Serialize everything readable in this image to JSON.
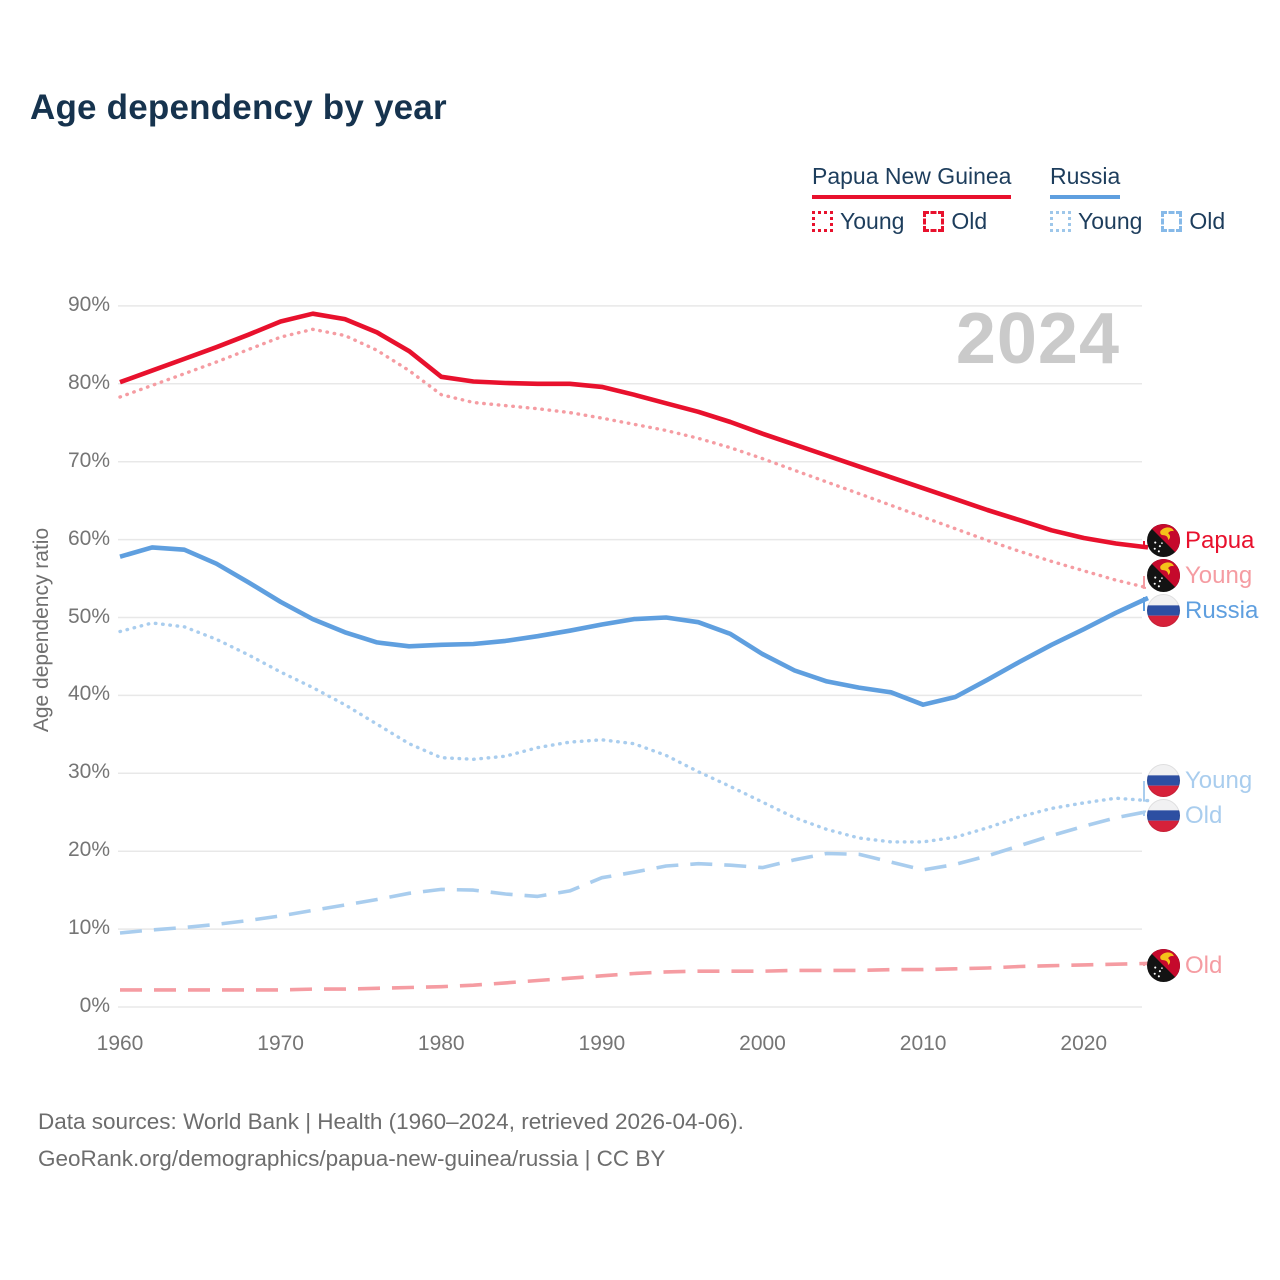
{
  "title": "Age dependency by year",
  "watermark": "2024",
  "legend": {
    "groups": [
      {
        "label": "Papua New Guinea",
        "color": "#e8112d",
        "items": [
          {
            "label": "Young",
            "style": "dotted",
            "color": "#e8112d"
          },
          {
            "label": "Old",
            "style": "dashed",
            "color": "#e8112d"
          }
        ]
      },
      {
        "label": "Russia",
        "color": "#5f9fdf",
        "items": [
          {
            "label": "Young",
            "style": "dotted",
            "color": "#9ec7ea"
          },
          {
            "label": "Old",
            "style": "dashed",
            "color": "#86b9e8"
          }
        ]
      }
    ]
  },
  "y_axis": {
    "title": "Age dependency ratio",
    "tick_values": [
      0,
      10,
      20,
      30,
      40,
      50,
      60,
      70,
      80,
      90
    ],
    "tick_suffix": "%"
  },
  "x_axis": {
    "tick_values": [
      1960,
      1970,
      1980,
      1990,
      2000,
      2010,
      2020
    ]
  },
  "footer": {
    "line1": "Data sources: World Bank | Health (1960–2024, retrieved 2026-04-06).",
    "line2": "GeoRank.org/demographics/papua-new-guinea/russia | CC BY"
  },
  "chart_data": {
    "type": "line",
    "title": "Age dependency by year",
    "ylabel": "Age dependency ratio",
    "xlim": [
      1960,
      2024
    ],
    "ylim": [
      0,
      95
    ],
    "grid": "horizontal",
    "legend_position": "top-right",
    "x": [
      1960,
      1962,
      1964,
      1966,
      1968,
      1970,
      1972,
      1974,
      1976,
      1978,
      1980,
      1982,
      1984,
      1986,
      1988,
      1990,
      1992,
      1994,
      1996,
      1998,
      2000,
      2002,
      2004,
      2006,
      2008,
      2010,
      2012,
      2014,
      2016,
      2018,
      2020,
      2022,
      2024
    ],
    "series": [
      {
        "id": "png-total",
        "name": "Papua New Guinea — total dependency",
        "end_label": "Papua",
        "flag": "papua-new-guinea",
        "color": "#e8112d",
        "style": "solid",
        "values": [
          80.2,
          81.7,
          83.2,
          84.7,
          86.3,
          88.0,
          89.0,
          88.3,
          86.6,
          84.2,
          80.9,
          80.3,
          80.1,
          80.0,
          80.0,
          79.6,
          78.6,
          77.5,
          76.4,
          75.1,
          73.6,
          72.2,
          70.8,
          69.4,
          68.0,
          66.6,
          65.2,
          63.8,
          62.5,
          61.2,
          60.2,
          59.5,
          59.0
        ]
      },
      {
        "id": "png-young",
        "name": "Papua New Guinea — young dependency",
        "end_label": "Young",
        "flag": "papua-new-guinea",
        "color": "#f59ca2",
        "style": "dotted",
        "values": [
          78.3,
          79.8,
          81.3,
          82.8,
          84.4,
          86.0,
          87.0,
          86.2,
          84.3,
          81.7,
          78.6,
          77.6,
          77.2,
          76.8,
          76.3,
          75.6,
          74.8,
          74.0,
          73.0,
          71.8,
          70.4,
          68.9,
          67.4,
          65.9,
          64.4,
          62.9,
          61.4,
          59.9,
          58.5,
          57.2,
          56.0,
          54.8,
          53.8
        ]
      },
      {
        "id": "ru-total",
        "name": "Russia — total dependency",
        "end_label": "Russia",
        "flag": "russia",
        "color": "#5f9fdf",
        "style": "solid",
        "values": [
          57.8,
          59.0,
          58.7,
          56.9,
          54.5,
          52.0,
          49.8,
          48.1,
          46.8,
          46.3,
          46.5,
          46.6,
          47.0,
          47.6,
          48.3,
          49.1,
          49.8,
          50.0,
          49.4,
          47.9,
          45.3,
          43.2,
          41.8,
          41.0,
          40.4,
          38.8,
          39.8,
          42.0,
          44.3,
          46.5,
          48.5,
          50.6,
          52.5
        ]
      },
      {
        "id": "ru-young",
        "name": "Russia — young dependency",
        "end_label": "Young",
        "flag": "russia",
        "color": "#a9cdee",
        "style": "dotted",
        "values": [
          48.2,
          49.3,
          48.8,
          47.2,
          45.2,
          43.0,
          41.0,
          38.8,
          36.3,
          33.8,
          32.0,
          31.8,
          32.2,
          33.3,
          34.0,
          34.3,
          33.8,
          32.3,
          30.2,
          28.3,
          26.3,
          24.3,
          22.8,
          21.7,
          21.2,
          21.2,
          21.8,
          23.0,
          24.4,
          25.5,
          26.2,
          26.8,
          26.5
        ]
      },
      {
        "id": "ru-old",
        "name": "Russia — old dependency",
        "end_label": "Old",
        "flag": "russia",
        "color": "#a9cdee",
        "style": "dashed",
        "values": [
          9.5,
          9.9,
          10.2,
          10.6,
          11.1,
          11.7,
          12.4,
          13.1,
          13.8,
          14.6,
          15.1,
          15.0,
          14.5,
          14.2,
          14.9,
          16.6,
          17.3,
          18.1,
          18.4,
          18.2,
          17.9,
          18.9,
          19.7,
          19.6,
          18.6,
          17.6,
          18.3,
          19.4,
          20.7,
          22.0,
          23.2,
          24.3,
          25.1
        ]
      },
      {
        "id": "png-old",
        "name": "Papua New Guinea — old dependency",
        "end_label": "Old",
        "flag": "papua-new-guinea",
        "color": "#f59ca2",
        "style": "dashed",
        "values": [
          2.2,
          2.2,
          2.2,
          2.2,
          2.2,
          2.2,
          2.3,
          2.3,
          2.4,
          2.5,
          2.6,
          2.8,
          3.1,
          3.4,
          3.7,
          4.0,
          4.3,
          4.5,
          4.6,
          4.6,
          4.6,
          4.7,
          4.7,
          4.7,
          4.8,
          4.8,
          4.9,
          5.0,
          5.2,
          5.3,
          5.4,
          5.5,
          5.6
        ]
      }
    ]
  }
}
